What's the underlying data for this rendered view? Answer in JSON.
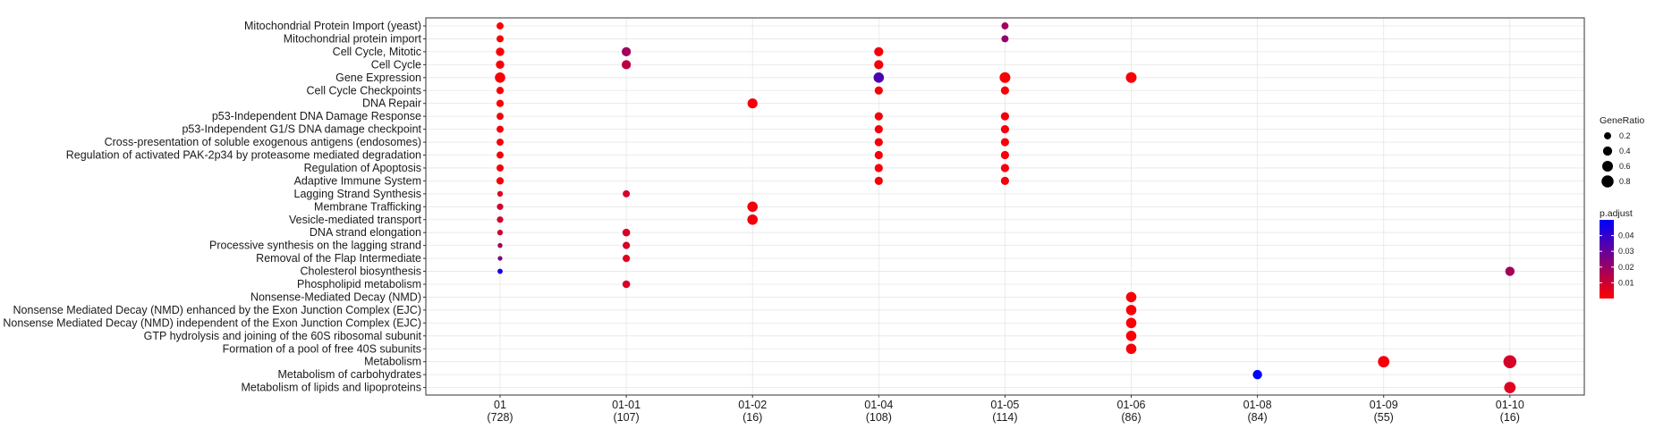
{
  "chart_data": {
    "type": "scatter",
    "title": "",
    "xlabel": "",
    "ylabel": "",
    "categories": [
      {
        "code": "01",
        "count": "(728)"
      },
      {
        "code": "01-01",
        "count": "(107)"
      },
      {
        "code": "01-02",
        "count": "(16)"
      },
      {
        "code": "01-04",
        "count": "(108)"
      },
      {
        "code": "01-05",
        "count": "(114)"
      },
      {
        "code": "01-06",
        "count": "(86)"
      },
      {
        "code": "01-08",
        "count": "(84)"
      },
      {
        "code": "01-09",
        "count": "(55)"
      },
      {
        "code": "01-10",
        "count": "(16)"
      }
    ],
    "terms": [
      "Mitochondrial Protein Import (yeast)",
      "Mitochondrial protein import",
      "Cell Cycle, Mitotic",
      "Cell Cycle",
      "Gene Expression",
      "Cell Cycle Checkpoints",
      "DNA Repair",
      "p53-Independent DNA Damage Response",
      "p53-Independent G1/S DNA damage checkpoint",
      "Cross-presentation of soluble exogenous antigens (endosomes)",
      "Regulation of activated PAK-2p34 by proteasome mediated degradation",
      "Regulation of Apoptosis",
      "Adaptive Immune System",
      "Lagging Strand Synthesis",
      "Membrane Trafficking",
      "Vesicle-mediated transport",
      "DNA strand elongation",
      "Processive synthesis on the lagging strand",
      "Removal of the Flap Intermediate",
      "Cholesterol biosynthesis",
      "Phospholipid metabolism",
      "Nonsense-Mediated Decay (NMD)",
      "Nonsense Mediated Decay (NMD) enhanced by the Exon Junction Complex (EJC)",
      "Nonsense Mediated Decay (NMD) independent of the Exon Junction Complex (EJC)",
      "GTP hydrolysis and joining of the 60S ribosomal subunit",
      "Formation of a pool of free 40S subunits",
      "Metabolism",
      "Metabolism of carbohydrates",
      "Metabolism of lipids and lipoproteins"
    ],
    "points": [
      {
        "term": 0,
        "cat": 0,
        "gene_ratio": 0.2,
        "p_adjust": 0.001
      },
      {
        "term": 0,
        "cat": 4,
        "gene_ratio": 0.2,
        "p_adjust": 0.018
      },
      {
        "term": 1,
        "cat": 0,
        "gene_ratio": 0.2,
        "p_adjust": 0.001
      },
      {
        "term": 1,
        "cat": 4,
        "gene_ratio": 0.2,
        "p_adjust": 0.022
      },
      {
        "term": 2,
        "cat": 0,
        "gene_ratio": 0.32,
        "p_adjust": 0.001
      },
      {
        "term": 2,
        "cat": 1,
        "gene_ratio": 0.4,
        "p_adjust": 0.018
      },
      {
        "term": 2,
        "cat": 3,
        "gene_ratio": 0.4,
        "p_adjust": 0.002
      },
      {
        "term": 3,
        "cat": 0,
        "gene_ratio": 0.32,
        "p_adjust": 0.001
      },
      {
        "term": 3,
        "cat": 1,
        "gene_ratio": 0.4,
        "p_adjust": 0.013
      },
      {
        "term": 3,
        "cat": 3,
        "gene_ratio": 0.4,
        "p_adjust": 0.002
      },
      {
        "term": 4,
        "cat": 0,
        "gene_ratio": 0.55,
        "p_adjust": 0.001
      },
      {
        "term": 4,
        "cat": 3,
        "gene_ratio": 0.55,
        "p_adjust": 0.035
      },
      {
        "term": 4,
        "cat": 4,
        "gene_ratio": 0.6,
        "p_adjust": 0.001
      },
      {
        "term": 4,
        "cat": 5,
        "gene_ratio": 0.6,
        "p_adjust": 0.001
      },
      {
        "term": 5,
        "cat": 0,
        "gene_ratio": 0.22,
        "p_adjust": 0.001
      },
      {
        "term": 5,
        "cat": 3,
        "gene_ratio": 0.3,
        "p_adjust": 0.002
      },
      {
        "term": 5,
        "cat": 4,
        "gene_ratio": 0.3,
        "p_adjust": 0.002
      },
      {
        "term": 6,
        "cat": 0,
        "gene_ratio": 0.22,
        "p_adjust": 0.001
      },
      {
        "term": 6,
        "cat": 2,
        "gene_ratio": 0.5,
        "p_adjust": 0.002
      },
      {
        "term": 7,
        "cat": 0,
        "gene_ratio": 0.2,
        "p_adjust": 0.002
      },
      {
        "term": 7,
        "cat": 3,
        "gene_ratio": 0.3,
        "p_adjust": 0.002
      },
      {
        "term": 7,
        "cat": 4,
        "gene_ratio": 0.3,
        "p_adjust": 0.002
      },
      {
        "term": 8,
        "cat": 0,
        "gene_ratio": 0.2,
        "p_adjust": 0.002
      },
      {
        "term": 8,
        "cat": 3,
        "gene_ratio": 0.3,
        "p_adjust": 0.002
      },
      {
        "term": 8,
        "cat": 4,
        "gene_ratio": 0.3,
        "p_adjust": 0.002
      },
      {
        "term": 9,
        "cat": 0,
        "gene_ratio": 0.2,
        "p_adjust": 0.002
      },
      {
        "term": 9,
        "cat": 3,
        "gene_ratio": 0.3,
        "p_adjust": 0.002
      },
      {
        "term": 9,
        "cat": 4,
        "gene_ratio": 0.3,
        "p_adjust": 0.002
      },
      {
        "term": 10,
        "cat": 0,
        "gene_ratio": 0.2,
        "p_adjust": 0.002
      },
      {
        "term": 10,
        "cat": 3,
        "gene_ratio": 0.3,
        "p_adjust": 0.002
      },
      {
        "term": 10,
        "cat": 4,
        "gene_ratio": 0.3,
        "p_adjust": 0.002
      },
      {
        "term": 11,
        "cat": 0,
        "gene_ratio": 0.2,
        "p_adjust": 0.002
      },
      {
        "term": 11,
        "cat": 3,
        "gene_ratio": 0.3,
        "p_adjust": 0.002
      },
      {
        "term": 11,
        "cat": 4,
        "gene_ratio": 0.3,
        "p_adjust": 0.002
      },
      {
        "term": 12,
        "cat": 0,
        "gene_ratio": 0.22,
        "p_adjust": 0.002
      },
      {
        "term": 12,
        "cat": 3,
        "gene_ratio": 0.3,
        "p_adjust": 0.002
      },
      {
        "term": 12,
        "cat": 4,
        "gene_ratio": 0.3,
        "p_adjust": 0.002
      },
      {
        "term": 13,
        "cat": 0,
        "gene_ratio": 0.1,
        "p_adjust": 0.006
      },
      {
        "term": 13,
        "cat": 1,
        "gene_ratio": 0.2,
        "p_adjust": 0.008
      },
      {
        "term": 14,
        "cat": 0,
        "gene_ratio": 0.15,
        "p_adjust": 0.009
      },
      {
        "term": 14,
        "cat": 2,
        "gene_ratio": 0.55,
        "p_adjust": 0.002
      },
      {
        "term": 15,
        "cat": 0,
        "gene_ratio": 0.15,
        "p_adjust": 0.009
      },
      {
        "term": 15,
        "cat": 2,
        "gene_ratio": 0.55,
        "p_adjust": 0.002
      },
      {
        "term": 16,
        "cat": 0,
        "gene_ratio": 0.1,
        "p_adjust": 0.01
      },
      {
        "term": 16,
        "cat": 1,
        "gene_ratio": 0.25,
        "p_adjust": 0.008
      },
      {
        "term": 17,
        "cat": 0,
        "gene_ratio": 0.06,
        "p_adjust": 0.018
      },
      {
        "term": 17,
        "cat": 1,
        "gene_ratio": 0.22,
        "p_adjust": 0.008
      },
      {
        "term": 18,
        "cat": 0,
        "gene_ratio": 0.05,
        "p_adjust": 0.025
      },
      {
        "term": 18,
        "cat": 1,
        "gene_ratio": 0.22,
        "p_adjust": 0.006
      },
      {
        "term": 19,
        "cat": 0,
        "gene_ratio": 0.08,
        "p_adjust": 0.045
      },
      {
        "term": 19,
        "cat": 8,
        "gene_ratio": 0.42,
        "p_adjust": 0.018
      },
      {
        "term": 20,
        "cat": 1,
        "gene_ratio": 0.25,
        "p_adjust": 0.008
      },
      {
        "term": 21,
        "cat": 5,
        "gene_ratio": 0.55,
        "p_adjust": 0.001
      },
      {
        "term": 22,
        "cat": 5,
        "gene_ratio": 0.55,
        "p_adjust": 0.001
      },
      {
        "term": 23,
        "cat": 5,
        "gene_ratio": 0.55,
        "p_adjust": 0.001
      },
      {
        "term": 24,
        "cat": 5,
        "gene_ratio": 0.55,
        "p_adjust": 0.001
      },
      {
        "term": 25,
        "cat": 5,
        "gene_ratio": 0.55,
        "p_adjust": 0.001
      },
      {
        "term": 26,
        "cat": 7,
        "gene_ratio": 0.7,
        "p_adjust": 0.002
      },
      {
        "term": 26,
        "cat": 8,
        "gene_ratio": 0.95,
        "p_adjust": 0.008
      },
      {
        "term": 27,
        "cat": 6,
        "gene_ratio": 0.42,
        "p_adjust": 0.05
      },
      {
        "term": 28,
        "cat": 8,
        "gene_ratio": 0.7,
        "p_adjust": 0.006
      }
    ],
    "legend": {
      "size_title": "GeneRatio",
      "size_labels": [
        "0.2",
        "0.4",
        "0.6",
        "0.8"
      ],
      "size_values": [
        0.2,
        0.4,
        0.6,
        0.8
      ],
      "color_title": "p.adjust",
      "color_labels": [
        "0.04",
        "0.03",
        "0.02",
        "0.01"
      ],
      "color_values": [
        0.04,
        0.03,
        0.02,
        0.01
      ],
      "color_range": [
        0.0,
        0.05
      ],
      "color_low": "#ff0000",
      "color_high": "#0000ff",
      "placement": "right"
    },
    "grid": true
  }
}
